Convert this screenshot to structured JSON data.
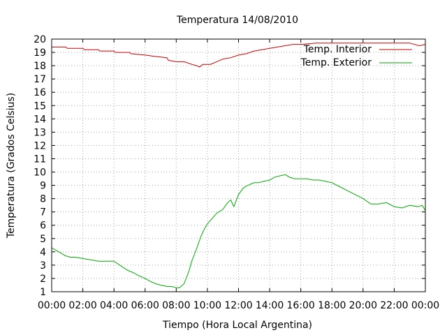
{
  "chart_data": {
    "type": "line",
    "title": "Temperatura 14/08/2010",
    "xlabel": "Tiempo (Hora Local Argentina)",
    "ylabel": "Temperatura (Grados Celsius)",
    "xlim": [
      0,
      24
    ],
    "ylim": [
      1,
      20
    ],
    "grid": true,
    "legend_position": "top-right",
    "x_ticks": [
      {
        "value": 0,
        "label": "00:00"
      },
      {
        "value": 2,
        "label": "02:00"
      },
      {
        "value": 4,
        "label": "04:00"
      },
      {
        "value": 6,
        "label": "06:00"
      },
      {
        "value": 8,
        "label": "08:00"
      },
      {
        "value": 10,
        "label": "10:00"
      },
      {
        "value": 12,
        "label": "12:00"
      },
      {
        "value": 14,
        "label": "14:00"
      },
      {
        "value": 16,
        "label": "16:00"
      },
      {
        "value": 18,
        "label": "18:00"
      },
      {
        "value": 20,
        "label": "20:00"
      },
      {
        "value": 22,
        "label": "22:00"
      },
      {
        "value": 24,
        "label": "00:00"
      }
    ],
    "y_ticks": [
      1,
      2,
      3,
      4,
      5,
      6,
      7,
      8,
      9,
      10,
      11,
      12,
      13,
      14,
      15,
      16,
      17,
      18,
      19,
      20
    ],
    "series": [
      {
        "name": "Temp. Interior",
        "color": "#cc0000",
        "x": [
          0,
          0.5,
          0.9,
          1.0,
          2.0,
          2.1,
          3.0,
          3.1,
          4.0,
          4.1,
          5.0,
          5.1,
          6.0,
          6.6,
          7.4,
          7.5,
          8.0,
          8.5,
          9.0,
          9.3,
          9.5,
          9.7,
          10.2,
          10.6,
          11.0,
          11.5,
          12.0,
          12.5,
          13.0,
          13.5,
          14.0,
          14.5,
          15.0,
          15.5,
          16.0,
          17.0,
          18.0,
          19.0,
          20.0,
          21.0,
          22.0,
          23.0,
          23.6,
          24.0
        ],
        "values": [
          19.4,
          19.4,
          19.4,
          19.3,
          19.3,
          19.2,
          19.2,
          19.1,
          19.1,
          19.0,
          19.0,
          18.9,
          18.8,
          18.7,
          18.6,
          18.4,
          18.3,
          18.3,
          18.1,
          18.0,
          17.9,
          18.1,
          18.1,
          18.3,
          18.5,
          18.6,
          18.8,
          18.9,
          19.1,
          19.2,
          19.3,
          19.4,
          19.5,
          19.6,
          19.6,
          19.7,
          19.7,
          19.7,
          19.7,
          19.7,
          19.7,
          19.7,
          19.5,
          19.6
        ]
      },
      {
        "name": "Temp. Exterior",
        "color": "#00aa00",
        "x": [
          0,
          0.3,
          0.6,
          0.9,
          1.2,
          1.5,
          2.0,
          2.5,
          3.0,
          3.5,
          4.0,
          4.5,
          4.9,
          5.3,
          5.6,
          6.0,
          6.3,
          6.7,
          7.0,
          7.4,
          7.7,
          8.0,
          8.2,
          8.5,
          8.8,
          9.0,
          9.3,
          9.6,
          9.8,
          10.0,
          10.3,
          10.6,
          11.0,
          11.3,
          11.5,
          11.7,
          12.0,
          12.3,
          12.6,
          13.0,
          13.3,
          13.6,
          14.0,
          14.3,
          14.6,
          15.0,
          15.3,
          15.6,
          16.0,
          16.4,
          16.8,
          17.2,
          17.6,
          18.0,
          18.5,
          19.0,
          19.5,
          20.0,
          20.5,
          21.0,
          21.5,
          22.0,
          22.5,
          23.0,
          23.5,
          23.8,
          24.0
        ],
        "values": [
          4.3,
          4.1,
          3.9,
          3.7,
          3.6,
          3.6,
          3.5,
          3.4,
          3.3,
          3.3,
          3.3,
          2.9,
          2.6,
          2.4,
          2.2,
          2.0,
          1.8,
          1.6,
          1.5,
          1.4,
          1.4,
          1.3,
          1.3,
          1.6,
          2.5,
          3.3,
          4.2,
          5.2,
          5.7,
          6.1,
          6.5,
          6.9,
          7.2,
          7.7,
          7.9,
          7.4,
          8.3,
          8.8,
          9.0,
          9.2,
          9.2,
          9.3,
          9.4,
          9.6,
          9.7,
          9.8,
          9.6,
          9.5,
          9.5,
          9.5,
          9.4,
          9.4,
          9.3,
          9.2,
          8.9,
          8.6,
          8.3,
          8.0,
          7.6,
          7.6,
          7.7,
          7.4,
          7.3,
          7.5,
          7.4,
          7.5,
          7.1
        ]
      }
    ]
  }
}
